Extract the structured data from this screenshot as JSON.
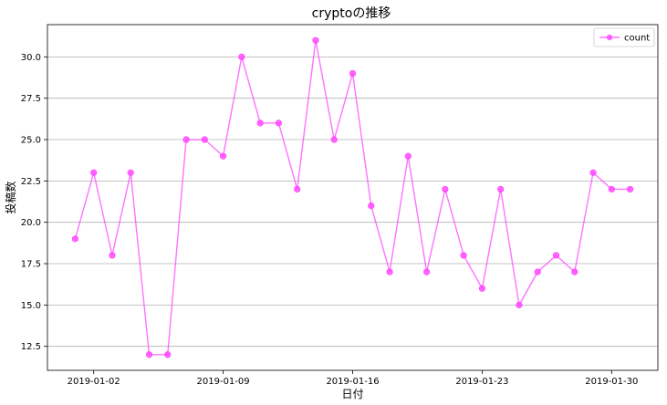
{
  "chart_data": {
    "type": "line",
    "title": "cryptoの推移",
    "xlabel": "日付",
    "ylabel": "投稿数",
    "x": [
      "2019-01-01",
      "2019-01-02",
      "2019-01-03",
      "2019-01-04",
      "2019-01-05",
      "2019-01-06",
      "2019-01-07",
      "2019-01-08",
      "2019-01-09",
      "2019-01-10",
      "2019-01-11",
      "2019-01-12",
      "2019-01-13",
      "2019-01-14",
      "2019-01-15",
      "2019-01-16",
      "2019-01-17",
      "2019-01-18",
      "2019-01-19",
      "2019-01-20",
      "2019-01-21",
      "2019-01-22",
      "2019-01-23",
      "2019-01-24",
      "2019-01-25",
      "2019-01-26",
      "2019-01-27",
      "2019-01-28",
      "2019-01-29",
      "2019-01-30",
      "2019-01-31"
    ],
    "series": [
      {
        "name": "count",
        "color": "#ff44ff",
        "values": [
          19,
          23,
          18,
          23,
          12,
          12,
          25,
          25,
          24,
          30,
          26,
          26,
          22,
          31,
          25,
          29,
          21,
          17,
          24,
          17,
          22,
          18,
          16,
          22,
          15,
          17,
          18,
          17,
          23,
          22,
          22
        ]
      }
    ],
    "xticks": [
      "2019-01-02",
      "2019-01-09",
      "2019-01-16",
      "2019-01-23",
      "2019-01-30"
    ],
    "yticks": [
      "12.5",
      "15.0",
      "17.5",
      "20.0",
      "22.5",
      "25.0",
      "27.5",
      "30.0"
    ],
    "ylim": [
      11.05,
      31.95
    ],
    "grid": "horizontal",
    "legend": "top-right"
  }
}
